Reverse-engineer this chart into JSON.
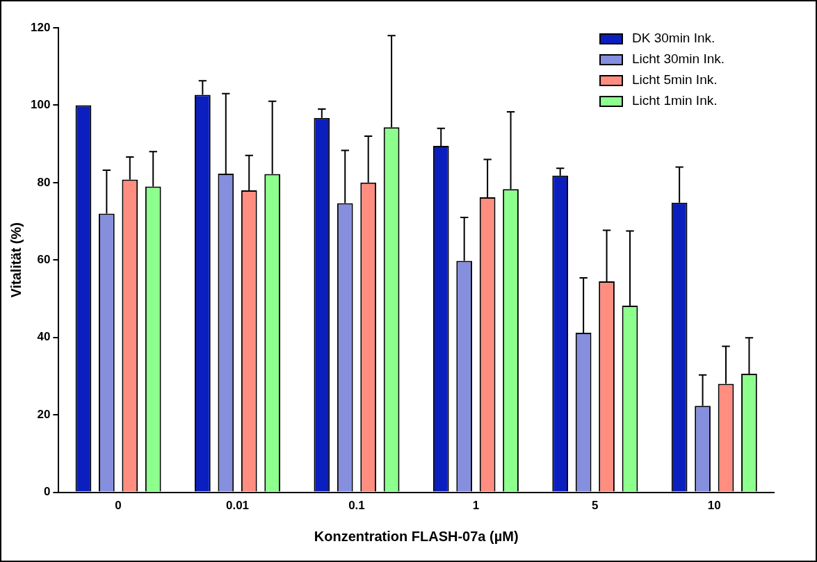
{
  "chart_data": {
    "type": "bar",
    "xlabel": "Konzentration FLASH-07a (µM)",
    "ylabel": "Vitalität (%)",
    "categories": [
      "0",
      "0.01",
      "0.1",
      "1",
      "5",
      "10"
    ],
    "ylim": [
      0,
      120
    ],
    "yticks": [
      0,
      20,
      40,
      60,
      80,
      100,
      120
    ],
    "grid": false,
    "legend": "top right",
    "series": [
      {
        "name": "DK 30min Ink.",
        "color": "#0a1fbd",
        "values": [
          100,
          102.7,
          96.7,
          89.5,
          81.8,
          74.8
        ],
        "errors": [
          null,
          [
            102.7,
            106.3
          ],
          [
            96.7,
            99
          ],
          [
            89.5,
            94
          ],
          [
            81.8,
            83.7
          ],
          [
            74.8,
            84
          ]
        ]
      },
      {
        "name": "Licht 30min Ink.",
        "color": "#858fde",
        "values": [
          72,
          82.3,
          74.7,
          59.8,
          41.2,
          22.3
        ],
        "errors": [
          [
            72,
            83.2
          ],
          [
            82.3,
            103
          ],
          [
            74.7,
            88.3
          ],
          [
            59.8,
            71
          ],
          [
            41.2,
            55.4
          ],
          [
            22.3,
            30.3
          ]
        ]
      },
      {
        "name": "Licht 5min Ink.",
        "color": "#ff8d80",
        "values": [
          80.8,
          78,
          80,
          76.2,
          54.5,
          28
        ],
        "errors": [
          [
            80.8,
            86.6
          ],
          [
            78,
            87
          ],
          [
            80,
            92
          ],
          [
            76.2,
            86
          ],
          [
            54.5,
            67.7
          ],
          [
            28,
            37.7
          ]
        ]
      },
      {
        "name": "Licht 1min Ink.",
        "color": "#8dff8d",
        "values": [
          79,
          82.2,
          94.3,
          78.3,
          48.2,
          30.6
        ],
        "errors": [
          [
            79,
            88
          ],
          [
            82.2,
            101
          ],
          [
            94.3,
            118
          ],
          [
            78.3,
            98.3
          ],
          [
            48.2,
            67.5
          ],
          [
            30.6,
            39.9
          ]
        ]
      }
    ]
  }
}
